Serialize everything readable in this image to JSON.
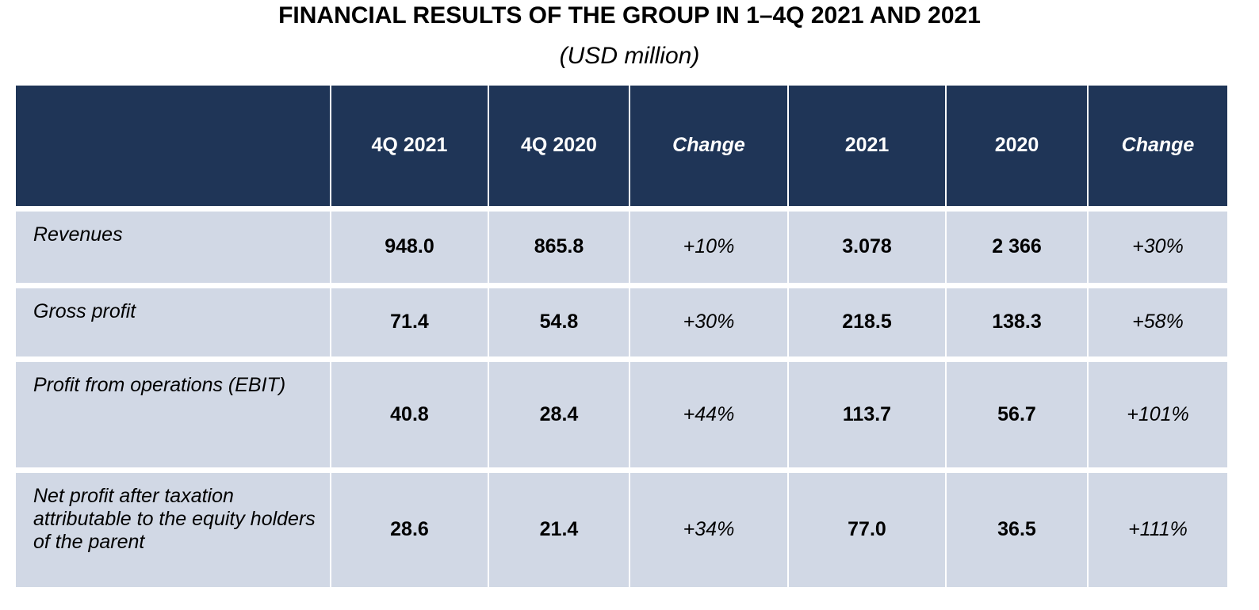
{
  "title": "FINANCIAL RESULTS OF THE GROUP IN 1–4Q 2021 AND 2021",
  "subtitle": "(USD million)",
  "table": {
    "headers": [
      "",
      "4Q 2021",
      "4Q 2020",
      "Change",
      "2021",
      "2020",
      "Change"
    ],
    "rows": [
      {
        "label": "Revenues",
        "q4_2021": "948.0",
        "q4_2020": "865.8",
        "q_change": "+10%",
        "y2021": "3.078",
        "y2020": "2 366",
        "y_change": "+30%"
      },
      {
        "label": "Gross profit",
        "q4_2021": "71.4",
        "q4_2020": "54.8",
        "q_change": "+30%",
        "y2021": "218.5",
        "y2020": "138.3",
        "y_change": "+58%"
      },
      {
        "label": "Profit from operations (EBIT)",
        "q4_2021": "40.8",
        "q4_2020": "28.4",
        "q_change": "+44%",
        "y2021": "113.7",
        "y2020": "56.7",
        "y_change": "+101%"
      },
      {
        "label": "Net profit after taxation attributable to the equity holders of the parent",
        "q4_2021": "28.6",
        "q4_2020": "21.4",
        "q_change": "+34%",
        "y2021": "77.0",
        "y2020": "36.5",
        "y_change": "+111%"
      }
    ]
  },
  "colors": {
    "header_background": "#1f3557",
    "header_text": "#ffffff",
    "row_background": "#d1d8e5"
  }
}
